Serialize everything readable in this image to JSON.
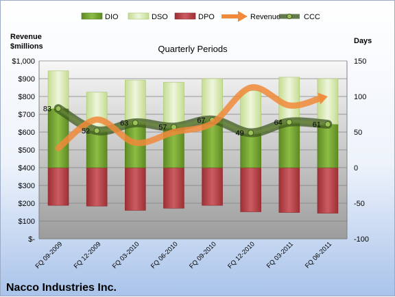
{
  "chart_data": {
    "type": "bar",
    "title": "Quarterly Periods",
    "company": "Nacco Industries Inc.",
    "left_axis_title": "Revenue $millions",
    "left_axis_title_lines": [
      "Revenue",
      "$millions"
    ],
    "right_axis_title": "Days",
    "categories": [
      "FQ 09-2009",
      "FQ 12-2009",
      "FQ 03-2010",
      "FQ 06-2010",
      "FQ 09-2010",
      "FQ 12-2010",
      "FQ 03-2011",
      "FQ 06-2011"
    ],
    "left_axis": {
      "min": 0,
      "max": 1000,
      "step": 100,
      "tick_labels": [
        "$-",
        "$100",
        "$200",
        "$300",
        "$400",
        "$500",
        "$600",
        "$700",
        "$800",
        "$900",
        "$1,000"
      ]
    },
    "right_axis": {
      "min": -100,
      "max": 150,
      "step": 50,
      "tick_labels": [
        "-100",
        "-50",
        "0",
        "50",
        "100",
        "150"
      ]
    },
    "series": [
      {
        "name": "DIO",
        "axis": "right",
        "kind": "stacked-bar",
        "values": [
          83,
          52,
          63,
          57,
          67,
          49,
          64,
          61
        ]
      },
      {
        "name": "DSO",
        "axis": "right",
        "kind": "stacked-bar",
        "values": [
          53,
          54,
          60,
          63,
          58,
          59,
          63,
          64
        ]
      },
      {
        "name": "DPO",
        "axis": "right",
        "kind": "negative-bar",
        "values": [
          -53,
          -54,
          -60,
          -57,
          -53,
          -62,
          -63,
          -64
        ]
      },
      {
        "name": "Revenue",
        "axis": "left",
        "kind": "smooth-line",
        "values": [
          510,
          670,
          540,
          600,
          650,
          850,
          750,
          800
        ]
      },
      {
        "name": "CCC",
        "axis": "right",
        "kind": "smooth-line-markers",
        "values": [
          83,
          52,
          63,
          57,
          67,
          49,
          64,
          61
        ]
      }
    ],
    "data_labels": [
      "83",
      "52",
      "63",
      "57",
      "67",
      "49",
      "64",
      "61"
    ],
    "legend": {
      "position": "top",
      "entries": [
        "DIO",
        "DSO",
        "DPO",
        "Revenue",
        "CCC"
      ]
    },
    "grid": true,
    "colors": {
      "dio": "#6e9b2e",
      "dso": "#d6e8b0",
      "dpo": "#b8454b",
      "revenue": "#f08a3a",
      "ccc": "#4f6b2a",
      "plot_bg_top": "#f2f2f2",
      "plot_bg_bottom": "#a6a6a6"
    }
  }
}
